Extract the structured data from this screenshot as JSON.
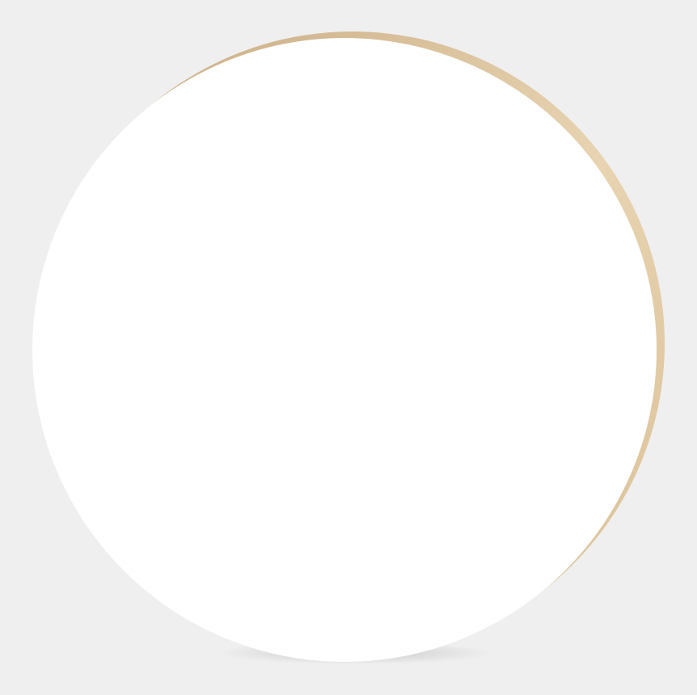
{
  "scene": {
    "subject": "round-whiteboard-with-wood-edge",
    "colors": {
      "background": "#efefef",
      "board_face": "#ffffff",
      "wood_edge_light": "#e8d4b2",
      "wood_edge_mid": "#d9bf95",
      "wood_edge_dark": "#c6a87f",
      "shadow": "#9a9a9a"
    }
  }
}
